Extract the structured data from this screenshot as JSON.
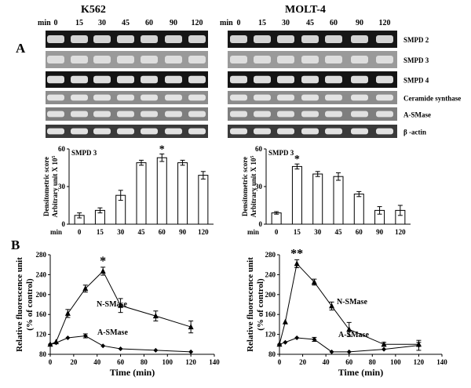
{
  "panel_a": {
    "label": "A",
    "min_label": "min",
    "time_points": [
      "0",
      "15",
      "30",
      "45",
      "60",
      "90",
      "120"
    ],
    "left_title": "K562",
    "right_title": "MOLT-4",
    "genes": [
      "SMPD 2",
      "SMPD 3",
      "SMPD 4",
      "Ceramide synthase",
      "A-SMase",
      "β -actin"
    ]
  },
  "panel_b": {
    "label": "B"
  },
  "chart_data": [
    {
      "type": "bar",
      "title": "SMPD 3",
      "xlabel": "min",
      "ylabel_line1": "Densitometric score",
      "ylabel_line2": "Arbitrary unit X 10",
      "ylabel_sup": "5",
      "categories": [
        "0",
        "15",
        "30",
        "45",
        "60",
        "90",
        "120"
      ],
      "values": [
        7,
        11,
        23,
        49,
        53,
        49,
        39
      ],
      "errors": [
        2,
        2,
        4,
        2,
        3,
        2,
        3
      ],
      "ylim": [
        0,
        60
      ],
      "yticks": [
        0,
        30,
        60
      ],
      "annotations": [
        {
          "category": "60",
          "text": "*"
        }
      ]
    },
    {
      "type": "bar",
      "title": "SMPD 3",
      "xlabel": "min",
      "ylabel_line1": "Densitometric score",
      "ylabel_line2": "Arbitrary unit X 10",
      "ylabel_sup": "5",
      "categories": [
        "0",
        "15",
        "30",
        "45",
        "60",
        "90",
        "120"
      ],
      "values": [
        9,
        46,
        40,
        38,
        24,
        11,
        11
      ],
      "errors": [
        1,
        2,
        2,
        3,
        2,
        3,
        4
      ],
      "ylim": [
        0,
        60
      ],
      "yticks": [
        0,
        30,
        60
      ],
      "annotations": [
        {
          "category": "15",
          "text": "*"
        }
      ]
    },
    {
      "type": "line",
      "xlabel": "Time (min)",
      "ylabel_line1": "Relative fluorescence unit",
      "ylabel_line2": "(% of control)",
      "xlim": [
        0,
        140
      ],
      "ylim": [
        80,
        280
      ],
      "xticks": [
        0,
        20,
        40,
        60,
        80,
        100,
        120,
        140
      ],
      "yticks": [
        80,
        120,
        160,
        200,
        240,
        280
      ],
      "series": [
        {
          "name": "N-SMase",
          "marker": "triangle",
          "x": [
            0,
            5,
            15,
            30,
            45,
            60,
            90,
            120
          ],
          "y": [
            100,
            105,
            162,
            212,
            247,
            178,
            157,
            135
          ],
          "err": [
            0,
            0,
            8,
            7,
            8,
            14,
            10,
            12
          ]
        },
        {
          "name": "A-SMase",
          "marker": "diamond",
          "x": [
            0,
            5,
            15,
            30,
            45,
            60,
            90,
            120
          ],
          "y": [
            100,
            103,
            113,
            117,
            97,
            91,
            88,
            85
          ],
          "err": [
            0,
            0,
            0,
            4,
            0,
            0,
            0,
            0
          ]
        }
      ],
      "annotations": [
        {
          "x": 45,
          "text": "*"
        }
      ]
    },
    {
      "type": "line",
      "xlabel": "Time (min)",
      "ylabel_line1": "Relative fluorescence unit",
      "ylabel_line2": "(% of control)",
      "xlim": [
        0,
        140
      ],
      "ylim": [
        80,
        280
      ],
      "xticks": [
        0,
        20,
        40,
        60,
        80,
        100,
        120,
        140
      ],
      "yticks": [
        80,
        120,
        160,
        200,
        240,
        280
      ],
      "series": [
        {
          "name": "N-SMase",
          "marker": "triangle",
          "x": [
            0,
            5,
            15,
            30,
            45,
            60,
            90,
            120
          ],
          "y": [
            100,
            145,
            262,
            225,
            177,
            130,
            100,
            100
          ],
          "err": [
            0,
            0,
            8,
            6,
            8,
            14,
            4,
            4
          ]
        },
        {
          "name": "A-SMase",
          "marker": "diamond",
          "x": [
            0,
            5,
            15,
            30,
            45,
            60,
            90,
            120
          ],
          "y": [
            100,
            104,
            113,
            110,
            85,
            85,
            90,
            98
          ],
          "err": [
            0,
            0,
            0,
            4,
            0,
            0,
            0,
            10
          ]
        }
      ],
      "annotations": [
        {
          "x": 15,
          "text": "**"
        }
      ]
    }
  ]
}
